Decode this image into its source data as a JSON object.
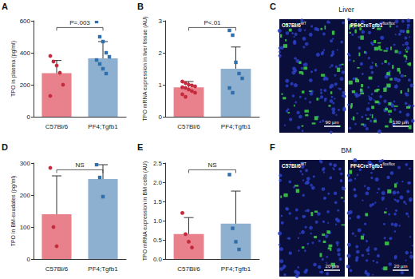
{
  "chart_data": [
    {
      "panel": "A",
      "type": "bar",
      "ylabel": "TPO in plasma (pg/ml)",
      "categories": [
        "C57Bl/6",
        "PF4;Tgfb1"
      ],
      "values": [
        272,
        365
      ],
      "errors": [
        80,
        105
      ],
      "points": [
        [
          380,
          345,
          320,
          275,
          200,
          130
        ],
        [
          595,
          500,
          470,
          400,
          375,
          355,
          330,
          300,
          270
        ]
      ],
      "colors": [
        "#e8818c",
        "#8db0d0"
      ],
      "annotation": "P=.003",
      "ylim": [
        0,
        600
      ],
      "yticks": [
        0,
        200,
        400,
        600
      ],
      "grid": false
    },
    {
      "panel": "B",
      "type": "bar",
      "ylabel": "TPO mRNA expression in liver tissue (AU)",
      "categories": [
        "C57Bl/6",
        "PF4;Tgfb1"
      ],
      "values": [
        0.92,
        1.5
      ],
      "errors": [
        0.18,
        0.68
      ],
      "points": [
        [
          1.1,
          1.05,
          1.0,
          0.98,
          0.95,
          0.92,
          0.9,
          0.85,
          0.8,
          0.75,
          0.7,
          0.62
        ],
        [
          2.7,
          2.55,
          1.7,
          1.35,
          1.2,
          0.9,
          0.75
        ]
      ],
      "colors": [
        "#e8818c",
        "#8db0d0"
      ],
      "annotation": "P<.01",
      "ylim": [
        0,
        3
      ],
      "yticks": [
        0,
        1,
        2,
        3
      ],
      "grid": false
    },
    {
      "panel": "D",
      "type": "bar",
      "ylabel": "TPO in BM-exudates (pg/ml)",
      "categories": [
        "C57Bl/6",
        "PF4;Tgfb1"
      ],
      "values": [
        140,
        250
      ],
      "errors": [
        120,
        45
      ],
      "points": [
        [
          285,
          100,
          40
        ],
        [
          295,
          255,
          195
        ]
      ],
      "colors": [
        "#e8818c",
        "#8db0d0"
      ],
      "annotation": "NS",
      "ylim": [
        0,
        300
      ],
      "yticks": [
        0,
        100,
        200,
        300
      ],
      "grid": false
    },
    {
      "panel": "E",
      "type": "bar",
      "ylabel": "TPO mRNA expression in BM cells (AU)",
      "categories": [
        "C57Bl/6",
        "PF4;Tgfb1"
      ],
      "values": [
        0.65,
        0.92
      ],
      "errors": [
        0.43,
        0.85
      ],
      "points": [
        [
          1.2,
          0.65,
          0.45,
          0.3
        ],
        [
          2.2,
          0.8,
          0.45,
          0.25
        ]
      ],
      "colors": [
        "#e8818c",
        "#8db0d0"
      ],
      "annotation": "NS",
      "ylim": [
        0,
        2.5
      ],
      "yticks": [
        {
          "value": 0,
          "label": "0.0"
        },
        0.5,
        {
          "value": 1,
          "label": "1.0"
        },
        1.5,
        {
          "value": 2,
          "label": "2.0"
        },
        2.5
      ],
      "grid": false
    }
  ],
  "images": [
    {
      "panel": "C",
      "title": "Liver",
      "images": [
        {
          "label": {
            "text": "C57Bl/6",
            "sup": "WT"
          },
          "scale_bar": "90 µm"
        },
        {
          "label": {
            "text": "PF4CreTgfb1",
            "sup": "flox/flox"
          },
          "scale_bar": "130 µm"
        }
      ]
    },
    {
      "panel": "F",
      "title": "BM",
      "images": [
        {
          "label": {
            "text": "C57Bl/6",
            "sup": "WT"
          },
          "scale_bar": "20 µm"
        },
        {
          "label": {
            "text": "PF4CreTgfb1",
            "sup": "flox/flox"
          },
          "scale_bar": "20 µm"
        }
      ]
    }
  ]
}
